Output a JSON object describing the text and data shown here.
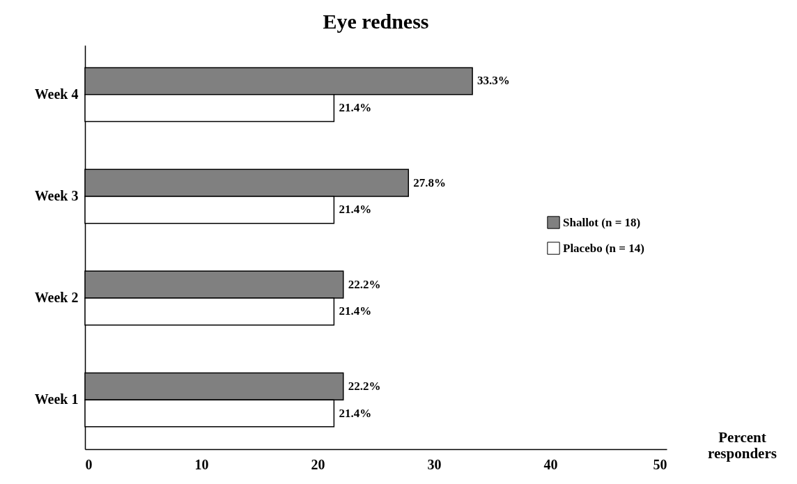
{
  "chart_data": {
    "type": "bar",
    "orientation": "horizontal",
    "title": "Eye redness",
    "xlabel": "Percent responders",
    "categories": [
      "Week 4",
      "Week 3",
      "Week 2",
      "Week 1"
    ],
    "series": [
      {
        "name": "Shallot (n = 18)",
        "color": "#808080",
        "values": [
          33.3,
          27.8,
          22.2,
          22.2
        ],
        "value_labels": [
          "33.3%",
          "27.8%",
          "22.2%",
          "22.2%"
        ]
      },
      {
        "name": "Placebo (n = 14)",
        "color": "#ffffff",
        "values": [
          21.4,
          21.4,
          21.4,
          21.4
        ],
        "value_labels": [
          "21.4%",
          "21.4%",
          "21.4%",
          "21.4%"
        ]
      }
    ],
    "xlim": [
      0,
      50
    ],
    "xticks": [
      0,
      10,
      20,
      30,
      40,
      50
    ],
    "grid": false,
    "legend": "right"
  }
}
